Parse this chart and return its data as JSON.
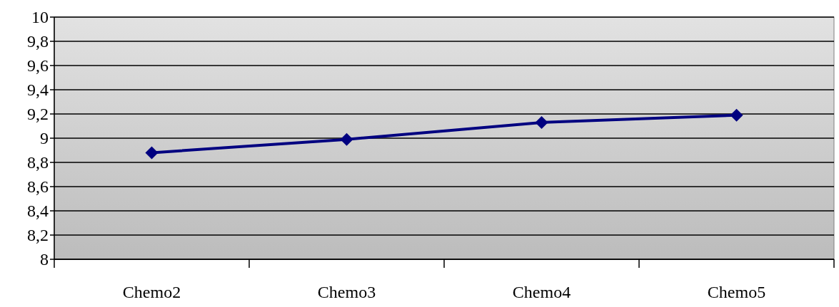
{
  "chart_data": {
    "type": "line",
    "categories": [
      "Chemo2",
      "Chemo3",
      "Chemo4",
      "Chemo5"
    ],
    "series": [
      {
        "color": "#000080",
        "values": [
          8.88,
          8.99,
          9.13,
          9.19
        ]
      }
    ],
    "ylim": [
      8,
      10
    ],
    "yticks": [
      8,
      {
        "value": 8.2,
        "label": "8,2"
      },
      {
        "value": 8.4,
        "label": "8,4"
      },
      {
        "value": 8.6,
        "label": "8,6"
      },
      {
        "value": 8.8,
        "label": "8,8"
      },
      9,
      {
        "value": 9.2,
        "label": "9,2"
      },
      {
        "value": 9.4,
        "label": "9,4"
      },
      {
        "value": 9.6,
        "label": "9,6"
      },
      {
        "value": 9.8,
        "label": "9,8"
      },
      10
    ],
    "grid": "y",
    "marker": "diamond",
    "line_style": "solid"
  }
}
